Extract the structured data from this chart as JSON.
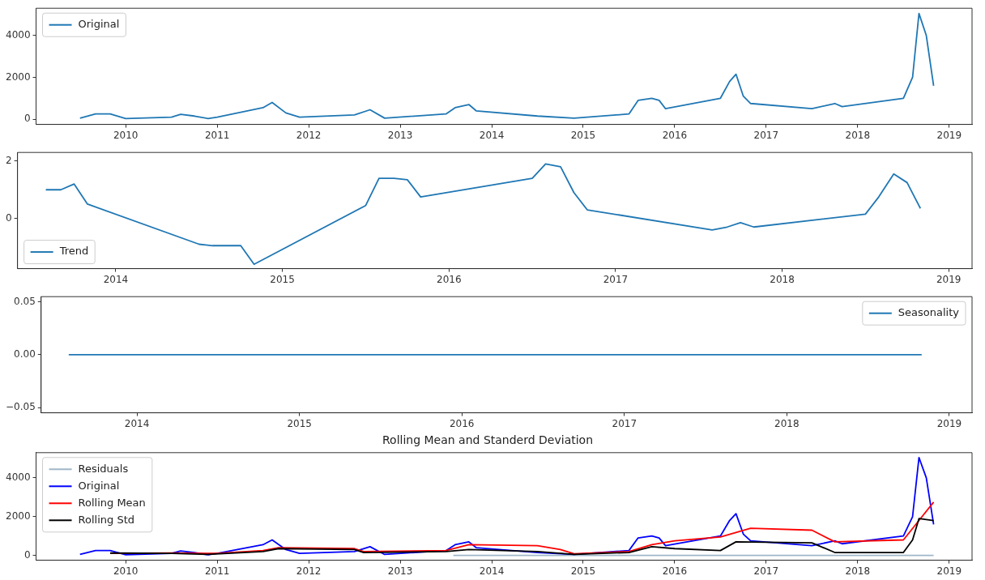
{
  "chart_data": [
    {
      "type": "line",
      "legend": "top left",
      "grid": false,
      "xlim": [
        2009.02,
        2019.25
      ],
      "xticks": [
        2010,
        2011,
        2012,
        2013,
        2014,
        2015,
        2016,
        2017,
        2018,
        2019
      ],
      "ylim": [
        -250,
        5300
      ],
      "yticks": [
        0,
        2000,
        4000
      ],
      "series": [
        {
          "name": "Original",
          "color": "#1f77b4",
          "x": [
            2009.5,
            2009.67,
            2009.83,
            2010.0,
            2010.5,
            2010.6,
            2010.75,
            2010.9,
            2011.0,
            2011.5,
            2011.6,
            2011.75,
            2011.9,
            2012.5,
            2012.67,
            2012.83,
            2013.5,
            2013.6,
            2013.75,
            2013.83,
            2014.5,
            2014.9,
            2015.5,
            2015.6,
            2015.75,
            2015.83,
            2015.9,
            2016.5,
            2016.6,
            2016.67,
            2016.75,
            2016.83,
            2017.5,
            2017.75,
            2017.83,
            2018.5,
            2018.6,
            2018.67,
            2018.75,
            2018.83
          ],
          "values": [
            50,
            250,
            250,
            30,
            100,
            230,
            150,
            30,
            100,
            550,
            800,
            300,
            100,
            200,
            450,
            50,
            250,
            550,
            700,
            400,
            150,
            50,
            250,
            900,
            1000,
            900,
            500,
            1000,
            1800,
            2150,
            1100,
            750,
            500,
            750,
            600,
            1000,
            2000,
            5050,
            4000,
            1600
          ]
        }
      ]
    },
    {
      "type": "line",
      "legend": "bottom left",
      "grid": false,
      "xlim": [
        2013.41,
        2019.14
      ],
      "xticks": [
        2014,
        2015,
        2016,
        2017,
        2018,
        2019
      ],
      "ylim": [
        -1.75,
        2.3
      ],
      "yticks": [
        0,
        2
      ],
      "series": [
        {
          "name": "Trend",
          "color": "#1f77b4",
          "x": [
            2013.58,
            2013.67,
            2013.75,
            2013.83,
            2014.5,
            2014.58,
            2014.75,
            2014.83,
            2015.5,
            2015.58,
            2015.67,
            2015.75,
            2015.83,
            2016.5,
            2016.58,
            2016.67,
            2016.75,
            2016.83,
            2017.58,
            2017.67,
            2017.75,
            2017.83,
            2018.5,
            2018.58,
            2018.67,
            2018.75,
            2018.83
          ],
          "values": [
            1.0,
            1.0,
            1.2,
            0.5,
            -0.9,
            -0.95,
            -0.95,
            -1.6,
            0.45,
            1.4,
            1.4,
            1.35,
            0.75,
            1.4,
            1.9,
            1.8,
            0.9,
            0.3,
            -0.4,
            -0.3,
            -0.15,
            -0.3,
            0.15,
            0.75,
            1.55,
            1.25,
            0.35
          ]
        }
      ]
    },
    {
      "type": "line",
      "legend": "top right",
      "grid": false,
      "xlim": [
        2013.41,
        2019.14
      ],
      "xticks": [
        2014,
        2015,
        2016,
        2017,
        2018,
        2019
      ],
      "ylim": [
        -0.055,
        0.055
      ],
      "yticks": [
        {
          "value": -0.05,
          "label": "−0.05"
        },
        {
          "value": 0,
          "label": "0.00"
        },
        {
          "value": 0.05,
          "label": "0.05"
        }
      ],
      "series": [
        {
          "name": "Seasonality",
          "color": "#1f77b4",
          "x": [
            2013.58,
            2018.83
          ],
          "values": [
            0,
            0
          ]
        }
      ]
    },
    {
      "type": "line",
      "title": "Rolling Mean and Standerd Deviation",
      "legend": "top left",
      "grid": false,
      "xlim": [
        2009.02,
        2019.25
      ],
      "xticks": [
        2010,
        2011,
        2012,
        2013,
        2014,
        2015,
        2016,
        2017,
        2018,
        2019
      ],
      "ylim": [
        -250,
        5300
      ],
      "yticks": [
        0,
        2000,
        4000
      ],
      "series": [
        {
          "name": "Residuals",
          "color": "#9fb6c8",
          "x": [
            2013.58,
            2018.83
          ],
          "values": [
            0,
            0
          ]
        },
        {
          "name": "Original",
          "color": "#0000ff",
          "x": [
            2009.5,
            2009.67,
            2009.83,
            2010.0,
            2010.5,
            2010.6,
            2010.75,
            2010.9,
            2011.0,
            2011.5,
            2011.6,
            2011.75,
            2011.9,
            2012.5,
            2012.67,
            2012.83,
            2013.5,
            2013.6,
            2013.75,
            2013.83,
            2014.5,
            2014.9,
            2015.5,
            2015.6,
            2015.75,
            2015.83,
            2015.9,
            2016.5,
            2016.6,
            2016.67,
            2016.75,
            2016.83,
            2017.5,
            2017.75,
            2017.83,
            2018.5,
            2018.6,
            2018.67,
            2018.75,
            2018.83
          ],
          "values": [
            50,
            250,
            250,
            30,
            100,
            230,
            150,
            30,
            100,
            550,
            800,
            300,
            100,
            200,
            450,
            50,
            250,
            550,
            700,
            400,
            150,
            50,
            250,
            900,
            1000,
            900,
            500,
            1000,
            1800,
            2150,
            1100,
            750,
            500,
            750,
            600,
            1000,
            2000,
            5050,
            4000,
            1600
          ]
        },
        {
          "name": "Rolling Mean",
          "color": "#ff0000",
          "x": [
            2009.83,
            2010.5,
            2011.0,
            2011.5,
            2011.67,
            2012.5,
            2012.6,
            2013.5,
            2013.75,
            2014.5,
            2014.75,
            2014.9,
            2015.5,
            2015.75,
            2016.0,
            2016.5,
            2016.83,
            2017.5,
            2017.75,
            2018.5,
            2018.67,
            2018.83
          ],
          "values": [
            100,
            120,
            100,
            250,
            400,
            350,
            200,
            250,
            550,
            500,
            300,
            80,
            200,
            550,
            750,
            950,
            1400,
            1300,
            700,
            800,
            1800,
            2750
          ]
        },
        {
          "name": "Rolling Std",
          "color": "#000000",
          "x": [
            2009.83,
            2010.5,
            2010.9,
            2011.5,
            2011.67,
            2012.5,
            2012.6,
            2013.5,
            2013.75,
            2014.5,
            2014.9,
            2015.5,
            2015.75,
            2016.0,
            2016.5,
            2016.67,
            2017.5,
            2017.75,
            2018.5,
            2018.6,
            2018.67,
            2018.83
          ],
          "values": [
            120,
            100,
            50,
            200,
            350,
            300,
            150,
            200,
            300,
            200,
            50,
            150,
            450,
            350,
            250,
            700,
            650,
            150,
            150,
            800,
            1900,
            1800
          ]
        }
      ]
    }
  ]
}
